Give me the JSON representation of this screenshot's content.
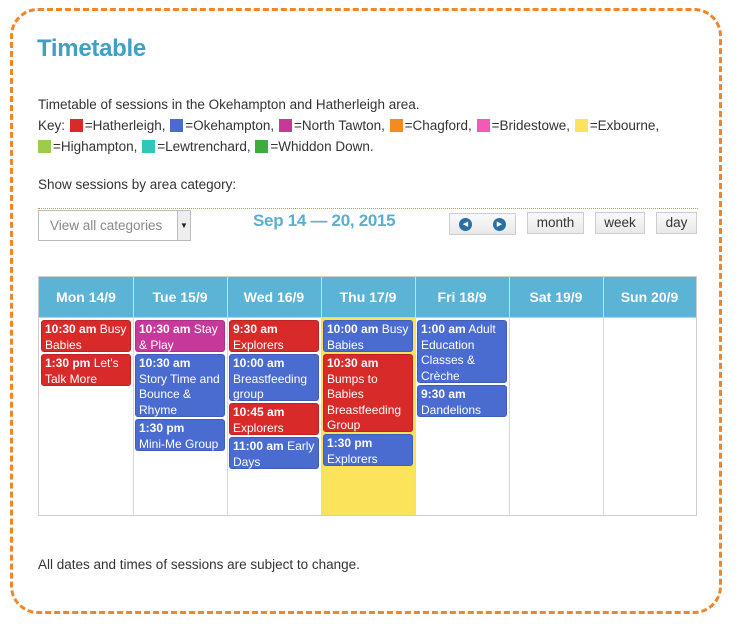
{
  "title": "Timetable",
  "intro": "Timetable of sessions in the Okehampton and Hatherleigh area.",
  "key": {
    "label": "Key:",
    "items": [
      {
        "name": "=Hatherleigh,",
        "color": "#d92a2a"
      },
      {
        "name": "=Okehampton,",
        "color": "#4a6bd0"
      },
      {
        "name": "=North Tawton,",
        "color": "#c63899"
      },
      {
        "name": "=Chagford,",
        "color": "#f58a1f"
      },
      {
        "name": "=Bridestowe,",
        "color": "#f45ab4"
      },
      {
        "name": "=Exbourne,",
        "color": "#fce35c"
      },
      {
        "name": "=Highampton,",
        "color": "#9bcc4a"
      },
      {
        "name": "=Lewtrenchard,",
        "color": "#2fc7b5"
      },
      {
        "name": "=Whiddon Down.",
        "color": "#3cac3c"
      }
    ]
  },
  "filter": {
    "label": "Show sessions by area category:",
    "selected": "View all categories"
  },
  "toolbar": {
    "range": "Sep 14 — 20, 2015",
    "month": "month",
    "week": "week",
    "day": "day"
  },
  "days": [
    "Mon 14/9",
    "Tue 15/9",
    "Wed 16/9",
    "Thu 17/9",
    "Fri 18/9",
    "Sat 19/9",
    "Sun 20/9"
  ],
  "events": {
    "mon": [
      {
        "time": "10:30 am",
        "title": "Busy Babies",
        "area": "Hatherleigh"
      },
      {
        "time": "1:30 pm",
        "title": "Let's Talk More",
        "area": "Hatherleigh"
      }
    ],
    "tue": [
      {
        "time": "10:30 am",
        "title": "Stay & Play",
        "area": "North Tawton"
      },
      {
        "time": "10:30 am",
        "title": "Story Time and Bounce & Rhyme",
        "area": "Okehampton"
      },
      {
        "time": "1:30 pm",
        "title": "Mini-Me Group",
        "area": "Okehampton"
      }
    ],
    "wed": [
      {
        "time": "9:30 am",
        "title": "Explorers",
        "area": "Hatherleigh"
      },
      {
        "time": "10:00 am",
        "title": "Breastfeeding group",
        "area": "Okehampton"
      },
      {
        "time": "10:45 am",
        "title": "Explorers",
        "area": "Hatherleigh"
      },
      {
        "time": "11:00 am",
        "title": "Early Days",
        "area": "Okehampton"
      }
    ],
    "thu": [
      {
        "time": "10:00 am",
        "title": "Busy Babies",
        "area": "Okehampton"
      },
      {
        "time": "10:30 am",
        "title": "Bumps to Babies Breastfeeding Group",
        "area": "Hatherleigh"
      },
      {
        "time": "1:30 pm",
        "title": "Explorers",
        "area": "Okehampton"
      }
    ],
    "fri": [
      {
        "time": "1:00 am",
        "title": "Adult Education Classes & Crèche",
        "area": "Okehampton"
      },
      {
        "time": "9:30 am",
        "title": "Dandelions",
        "area": "Okehampton"
      }
    ]
  },
  "footer": "All dates and times of sessions are subject to change."
}
